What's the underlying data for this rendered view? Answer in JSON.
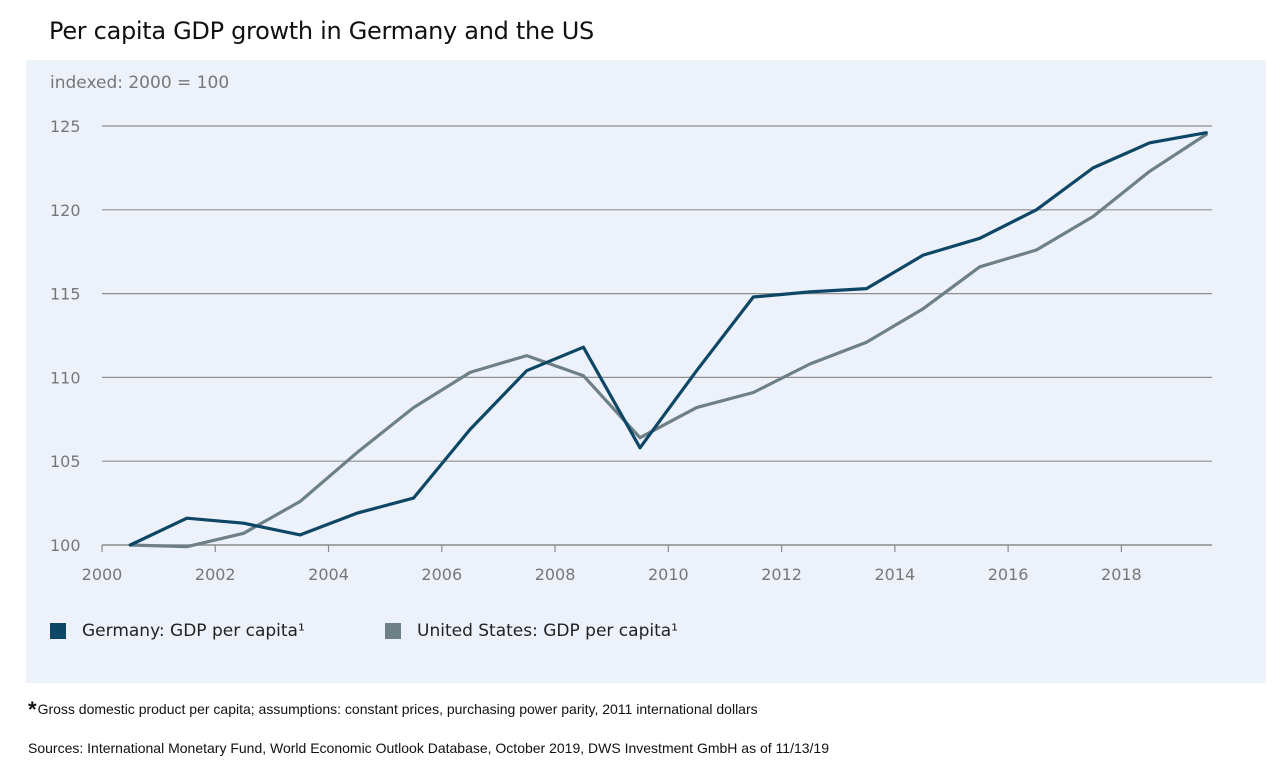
{
  "page": {
    "title": "Per capita GDP growth in Germany and the US",
    "footnote_marker": "*",
    "footnote": "Gross domestic product per capita; assumptions: constant prices, purchasing power parity, 2011 international dollars",
    "sources": "Sources: International Monetary Fund, World Economic Outlook Database, October 2019, DWS Investment GmbH as of 11/13/19"
  },
  "chart_data": {
    "type": "line",
    "title": "Per capita GDP growth in Germany and the US",
    "ylabel": "indexed: 2000 = 100",
    "xlabel": "",
    "xlim": [
      2000,
      2019.6
    ],
    "ylim": [
      100,
      125
    ],
    "xticks": [
      2000,
      2002,
      2004,
      2006,
      2008,
      2010,
      2012,
      2014,
      2016,
      2018
    ],
    "yticks": [
      100,
      105,
      110,
      115,
      120,
      125
    ],
    "grid": true,
    "legend_position": "bottom-left",
    "x": [
      2000.5,
      2001.5,
      2002.5,
      2003.5,
      2004.5,
      2005.5,
      2006.5,
      2007.5,
      2008.5,
      2009.5,
      2010.5,
      2011.5,
      2012.5,
      2013.5,
      2014.5,
      2015.5,
      2016.5,
      2017.5,
      2018.5,
      2019.5
    ],
    "series": [
      {
        "name": "Germany: GDP per capita¹",
        "color": "#0e4766",
        "values": [
          100,
          101.6,
          101.3,
          100.6,
          101.9,
          102.8,
          106.9,
          110.4,
          111.8,
          105.8,
          110.4,
          114.8,
          115.1,
          115.3,
          117.3,
          118.3,
          120.0,
          122.5,
          124.0,
          124.6
        ]
      },
      {
        "name": "United States: GDP per capita¹",
        "color": "#6d8085",
        "values": [
          100,
          99.9,
          100.7,
          102.6,
          105.5,
          108.2,
          110.3,
          111.3,
          110.1,
          106.4,
          108.2,
          109.1,
          110.8,
          112.1,
          114.1,
          116.6,
          117.6,
          119.6,
          122.3,
          124.5
        ]
      }
    ]
  }
}
